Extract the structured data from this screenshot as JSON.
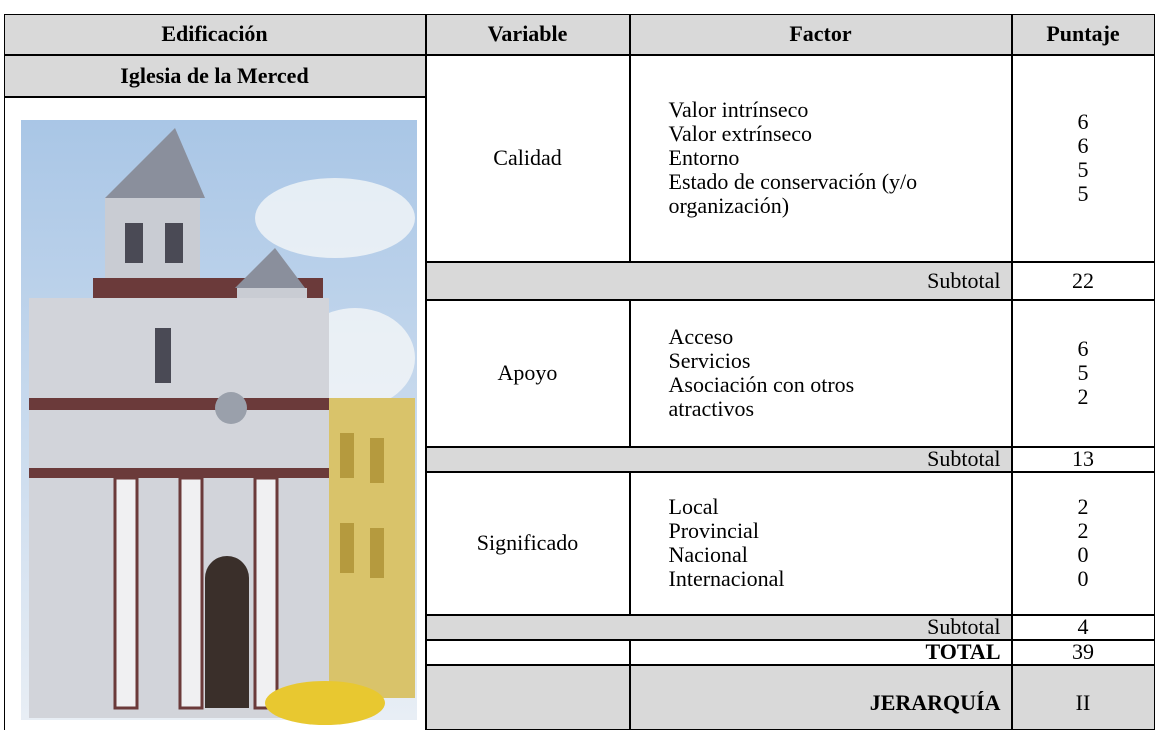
{
  "header": {
    "columns": [
      "Edificación",
      "Variable",
      "Factor",
      "Puntaje"
    ]
  },
  "building": "Iglesia de la Merced",
  "sections": [
    {
      "variable": "Calidad",
      "factors": [
        "Valor intrínseco",
        "Valor extrínseco",
        "Entorno",
        "Estado de conservación (y/o organización)"
      ],
      "scores": [
        6,
        6,
        5,
        5
      ],
      "subtotal_label": "Subtotal",
      "subtotal": 22
    },
    {
      "variable": "Apoyo",
      "factors": [
        "Acceso",
        "Servicios",
        "Asociación con otros atractivos"
      ],
      "scores": [
        6,
        5,
        2
      ],
      "subtotal_label": "Subtotal",
      "subtotal": 13
    },
    {
      "variable": "Significado",
      "factors": [
        "Local",
        "Provincial",
        "Nacional",
        "Internacional"
      ],
      "scores": [
        2,
        2,
        0,
        0
      ],
      "subtotal_label": "Subtotal",
      "subtotal": 4
    }
  ],
  "total": {
    "label": "TOTAL",
    "value": 39
  },
  "hierarchy": {
    "label": "JERARQUÍA",
    "value": "II"
  }
}
